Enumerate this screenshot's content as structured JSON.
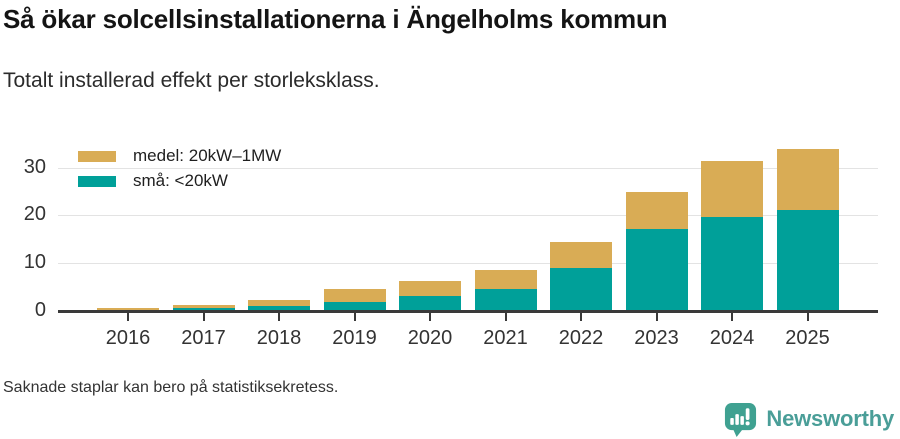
{
  "chart_data": {
    "type": "bar",
    "stacked": true,
    "title": "Så ökar solcellsinstallationerna i Ängelholms kommun",
    "subtitle": "Totalt installerad effekt per storleksklass.",
    "categories": [
      "2016",
      "2017",
      "2018",
      "2019",
      "2020",
      "2021",
      "2022",
      "2023",
      "2024",
      "2025"
    ],
    "series": [
      {
        "name": "små: <20kW",
        "color": "#00A099",
        "values": [
          0.3,
          0.6,
          1.1,
          1.9,
          3.1,
          4.5,
          9.0,
          17.2,
          19.6,
          21.2
        ]
      },
      {
        "name": "medel: 20kW–1MW",
        "color": "#D9AC55",
        "values": [
          0.3,
          0.7,
          1.1,
          2.7,
          3.2,
          4.0,
          5.4,
          7.8,
          11.7,
          12.7
        ]
      }
    ],
    "legend_order": [
      "medel: 20kW–1MW",
      "små: <20kW"
    ],
    "legend_position": "top-left",
    "xlabel": "",
    "ylabel": "",
    "yticks": [
      0,
      10,
      20,
      30
    ],
    "ylim": [
      0,
      35
    ],
    "grid": "horizontal"
  },
  "footer": {
    "note": "Saknade staplar kan bero på statistiksekretess.",
    "brand": "Newsworthy"
  },
  "colors": {
    "axis": "#3a3a3a",
    "grid": "#e3e3e3",
    "title_text": "#141414",
    "body_text": "#333333",
    "brand_text": "#4a9e98",
    "brand_icon": "#3fa191"
  }
}
